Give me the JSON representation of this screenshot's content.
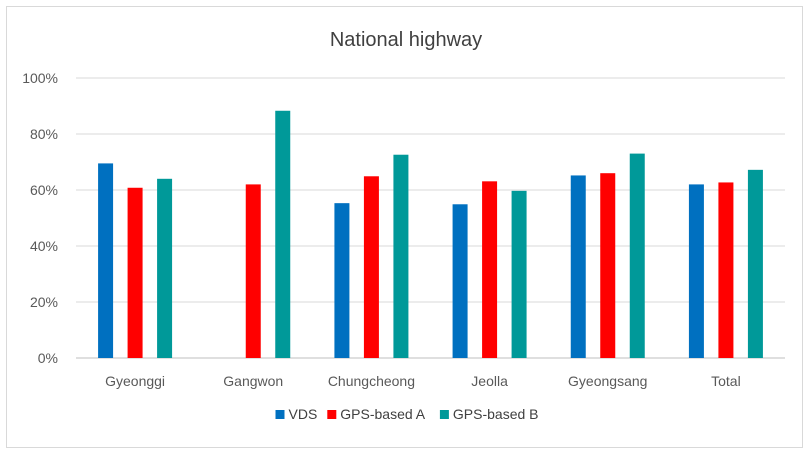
{
  "chart_data": {
    "type": "bar",
    "title": "National highway",
    "categories": [
      "Gyeonggi",
      "Gangwon",
      "Chungcheong",
      "Jeolla",
      "Gyeongsang",
      "Total"
    ],
    "series": [
      {
        "name": "VDS",
        "color": "#0070c0",
        "values": [
          0.695,
          null,
          0.553,
          0.549,
          0.652,
          0.62
        ]
      },
      {
        "name": "GPS-based A",
        "color": "#ff0000",
        "values": [
          0.608,
          0.62,
          0.649,
          0.631,
          0.66,
          0.627
        ]
      },
      {
        "name": "GPS-based B",
        "color": "#009999",
        "values": [
          0.64,
          0.883,
          0.726,
          0.597,
          0.73,
          0.672
        ]
      }
    ],
    "yticks": [
      "0%",
      "20%",
      "40%",
      "60%",
      "80%",
      "100%"
    ],
    "ylim": [
      0,
      1
    ],
    "grid": true,
    "legend_position": "bottom"
  }
}
